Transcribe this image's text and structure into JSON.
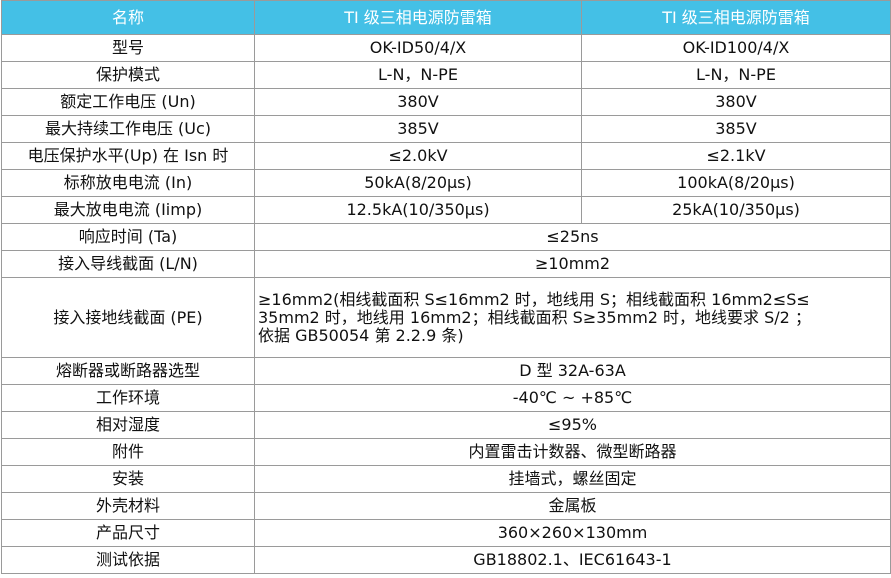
{
  "table": {
    "header": [
      "名称",
      "TI 级三相电源防雷箱",
      "TI 级三相电源防雷箱"
    ],
    "rows": [
      [
        "型号",
        "OK-ID50/4/X",
        "OK-ID100/4/X"
      ],
      [
        "保护模式",
        "L-N，N-PE",
        "L-N，N-PE"
      ],
      [
        "额定工作电压 (Un)",
        "380V",
        "380V"
      ],
      [
        "最大持续工作电压 (Uc)",
        "385V",
        "385V"
      ],
      [
        "电压保护水平(Up) 在 Isn 时",
        "≤2.0kV",
        "≤2.1kV"
      ],
      [
        "标称放电电流 (In)",
        "50kA(8/20μs)",
        "100kA(8/20μs)"
      ],
      [
        "最大放电电流 (Iimp)",
        "12.5kA(10/350μs)",
        "25kA(10/350μs)"
      ],
      [
        "响应时间 (Ta)",
        "≤25ns"
      ],
      [
        "接入导线截面 (L/N)",
        "≥10mm2"
      ],
      [
        "接入接地线截面 (PE)",
        [
          "≥16mm2(相线截面积 S≤16mm2 时，地线用 S；相线截面积 16mm2≤S≤",
          "35mm2 时，地线用 16mm2；相线截面积 S≥35mm2 时，地线要求 S/2 ；",
          "依据 GB50054 第 2.2.9 条)"
        ]
      ],
      [
        "熔断器或断路器选型",
        "D 型 32A-63A"
      ],
      [
        "工作环境",
        "-40℃ ~ +85℃"
      ],
      [
        "相对湿度",
        "≤95%"
      ],
      [
        "附件",
        "内置雷击计数器、微型断路器"
      ],
      [
        "安装",
        "挂墙式，螺丝固定"
      ],
      [
        "外壳材料",
        "金属板"
      ],
      [
        "产品尺寸",
        "360×260×130mm"
      ],
      [
        "测试依据",
        "GB18802.1、IEC61643-1"
      ]
    ]
  }
}
